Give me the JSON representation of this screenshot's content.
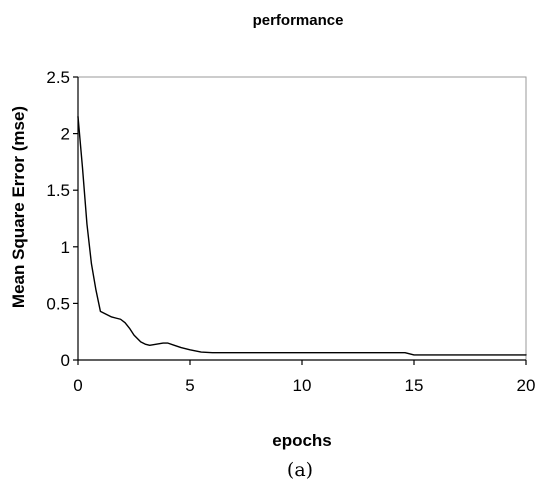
{
  "chart_data": {
    "type": "line",
    "title": "performance",
    "xlabel": "epochs",
    "ylabel": "Mean Square Error (mse)",
    "caption": "(a)",
    "xlim": [
      0,
      20
    ],
    "ylim": [
      0,
      2.5
    ],
    "x_ticks": [
      0,
      5,
      10,
      15,
      20
    ],
    "y_ticks": [
      0,
      0.5,
      1,
      1.5,
      2,
      2.5
    ],
    "x_tick_labels": [
      "0",
      "5",
      "10",
      "15",
      "20"
    ],
    "y_tick_labels": [
      "0",
      "0.5",
      "1",
      "1.5",
      "2",
      "2.5"
    ],
    "grid": false,
    "legend": "none",
    "line_color": "#000000",
    "series": [
      {
        "x": [
          0,
          0.2,
          0.4,
          0.6,
          0.8,
          1.0,
          1.2,
          1.5,
          1.7,
          1.9,
          2.1,
          2.3,
          2.5,
          2.8,
          3.0,
          3.2,
          3.5,
          3.8,
          4.0,
          4.3,
          4.6,
          5.0,
          5.5,
          6.0,
          7,
          8,
          9,
          10,
          11,
          12,
          13,
          14,
          14.6,
          15.0,
          15.5,
          16,
          17,
          18,
          19,
          20
        ],
        "y": [
          2.15,
          1.7,
          1.2,
          0.85,
          0.62,
          0.43,
          0.41,
          0.38,
          0.37,
          0.36,
          0.33,
          0.28,
          0.22,
          0.16,
          0.14,
          0.13,
          0.14,
          0.15,
          0.15,
          0.13,
          0.11,
          0.09,
          0.07,
          0.065,
          0.065,
          0.065,
          0.065,
          0.065,
          0.065,
          0.065,
          0.065,
          0.065,
          0.065,
          0.045,
          0.045,
          0.045,
          0.045,
          0.045,
          0.045,
          0.045
        ]
      }
    ]
  }
}
